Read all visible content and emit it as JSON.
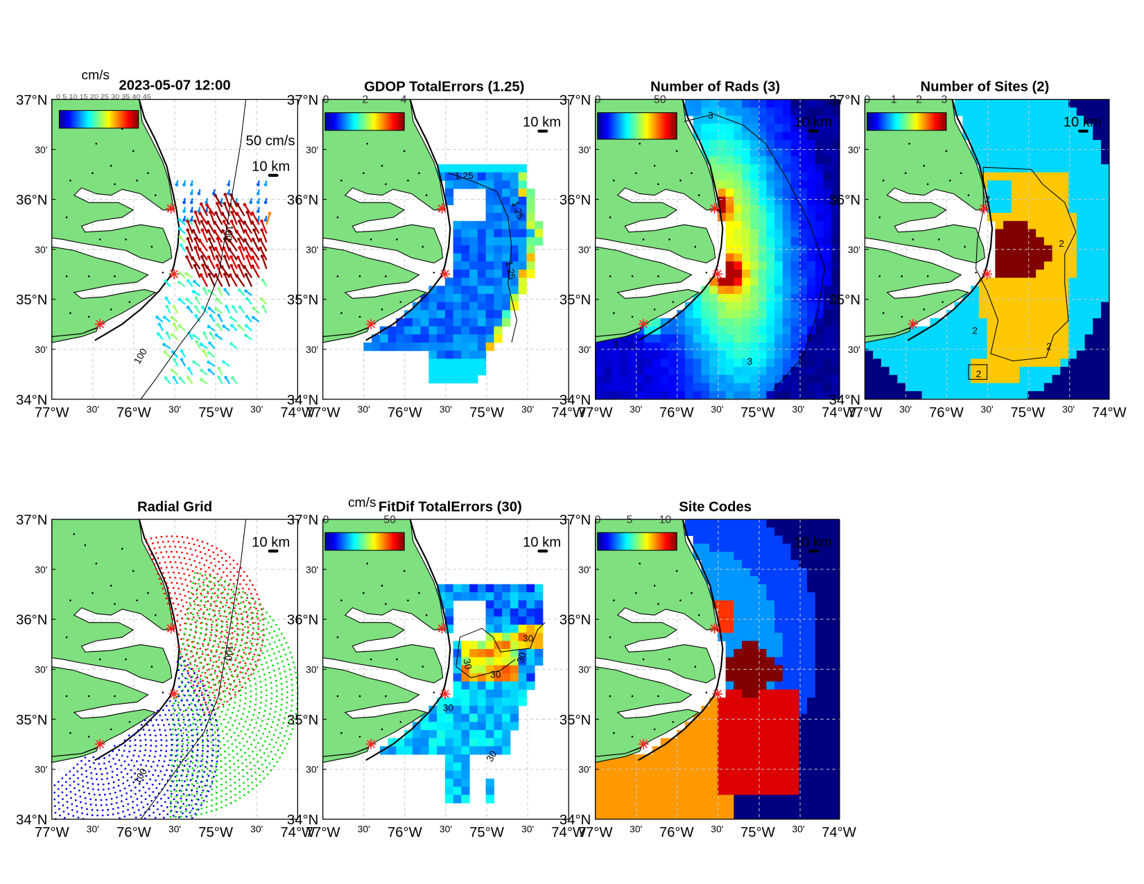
{
  "figure": {
    "colors": {
      "land": "#7fe07f",
      "coast": "#000000",
      "site_marker": "#ff2020",
      "grid": "#c8c8c8"
    },
    "lat_ticks": [
      "37°N",
      "30'",
      "36°N",
      "30'",
      "35°N",
      "30'",
      "34°N"
    ],
    "lon_ticks": [
      "77°W",
      "30'",
      "76°W",
      "30'",
      "75°W",
      "30'",
      "74°W"
    ],
    "scale_bar": "10 km"
  },
  "panels": [
    {
      "id": "totals",
      "title": "2023-05-07 12:00",
      "colorbar_unit": "cm/s",
      "colorbar_ticks_overlapped": "0 5 10 15 20 25 30 35 40 45",
      "vector_scale_label": "50 cm/s",
      "contour_labels": [
        "100",
        "100"
      ]
    },
    {
      "id": "gdop",
      "title": "GDOP TotalErrors (1.25)",
      "colorbar_ticks": [
        "0",
        "2",
        "4"
      ],
      "contour_labels": [
        "1.25",
        "1.25",
        "1.25"
      ]
    },
    {
      "id": "nrads",
      "title": "Number of Rads (3)",
      "colorbar_ticks": [
        "0",
        "50"
      ],
      "contour_labels": [
        "3",
        "3",
        "3"
      ]
    },
    {
      "id": "nsites",
      "title": "Number of Sites (2)",
      "colorbar_ticks": [
        "0",
        "1",
        "2",
        "3"
      ],
      "contour_labels": [
        "2",
        "2",
        "2",
        "2",
        "2"
      ]
    },
    {
      "id": "radial-grid",
      "title": "Radial Grid",
      "contour_labels": [
        "100",
        "100"
      ]
    },
    {
      "id": "fitdif",
      "title": "FitDif TotalErrors (30)",
      "colorbar_unit": "cm/s",
      "colorbar_ticks": [
        "0",
        "50"
      ],
      "contour_labels": [
        "30",
        "30",
        "30",
        "30",
        "30",
        "30"
      ]
    },
    {
      "id": "sitecodes",
      "title": "Site Codes",
      "colorbar_ticks": [
        "0",
        "5",
        "10"
      ]
    }
  ]
}
